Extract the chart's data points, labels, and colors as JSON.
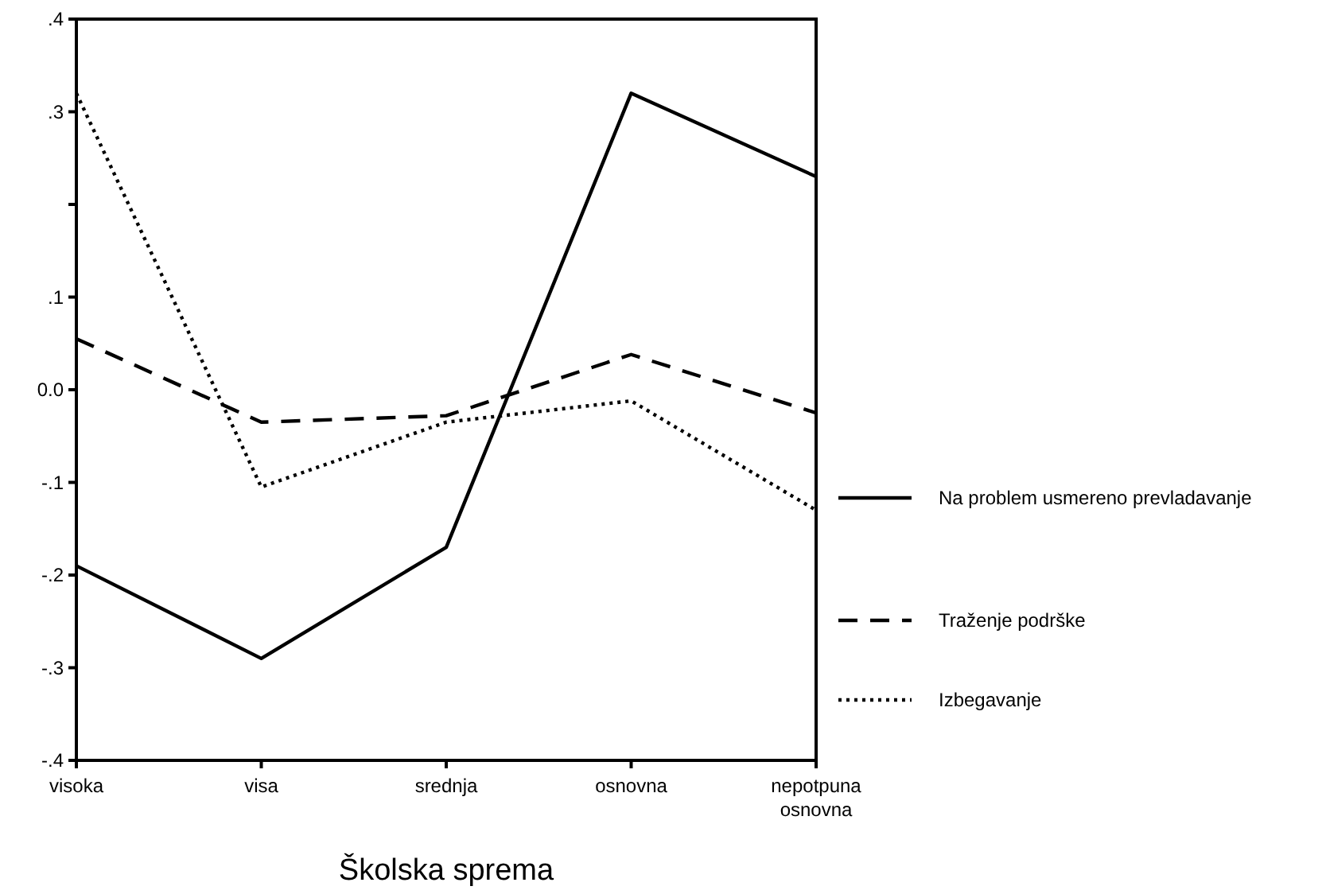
{
  "chart_data": {
    "type": "line",
    "xlabel": "Školska sprema",
    "categories": [
      "visoka",
      "visa",
      "srednja",
      "osnovna",
      "nepotpuna osnovna"
    ],
    "series": [
      {
        "name": "Na problem usmereno prevladavanje",
        "color": "#000000",
        "line_style": "solid",
        "values": [
          -0.19,
          -0.29,
          -0.17,
          0.32,
          0.23
        ]
      },
      {
        "name": "Traženje podrške",
        "color": "#000000",
        "line_style": "dashed",
        "values": [
          0.055,
          -0.035,
          -0.028,
          0.038,
          -0.025
        ]
      },
      {
        "name": "Izbegavanje",
        "color": "#000000",
        "line_style": "dotted",
        "values": [
          0.32,
          -0.105,
          -0.035,
          -0.012,
          -0.13
        ]
      }
    ],
    "ylim": [
      -0.4,
      0.4
    ],
    "yticks": [
      {
        "value": -0.4,
        "label": "-.4"
      },
      {
        "value": -0.3,
        "label": "-.3"
      },
      {
        "value": -0.2,
        "label": "-.2"
      },
      {
        "value": -0.1,
        "label": "-.1"
      },
      {
        "value": 0,
        "label": "0.0"
      },
      {
        "value": 0.1,
        "label": ".1"
      },
      {
        "value": 0.2,
        "label": null
      },
      {
        "value": 0.3,
        "label": ".3"
      },
      {
        "value": 0.4,
        "label": ".4"
      }
    ],
    "legend": "right",
    "grid": false
  }
}
